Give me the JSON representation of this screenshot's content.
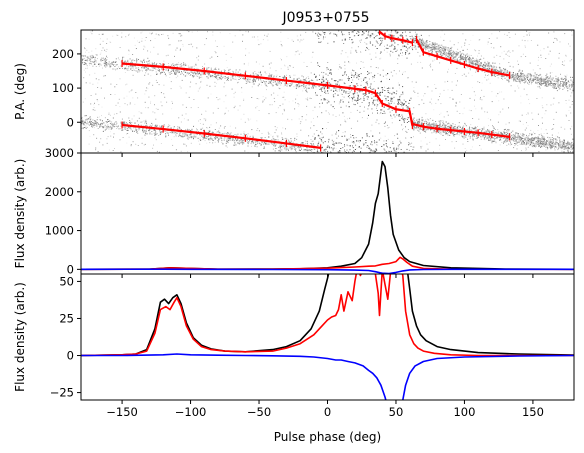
{
  "chart_data": [
    {
      "type": "scatter",
      "title": "J0953+0755",
      "xlabel": "",
      "ylabel": "P.A. (deg)",
      "xlim": [
        -180,
        180
      ],
      "ylim": [
        -90,
        270
      ],
      "yticks": [
        0,
        100,
        200
      ],
      "grid": false,
      "background": "grayscale intensity map of polarization position angle versus pulse phase",
      "series": [
        {
          "color": "#ff0000",
          "marker": "errorbar-points",
          "segments": [
            {
              "x": [
                -150,
                -120,
                -90,
                -60,
                -30,
                0,
                20,
                28,
                35,
                40,
                50,
                60,
                62
              ],
              "y": [
                172,
                162,
                150,
                136,
                122,
                108,
                98,
                94,
                85,
                55,
                38,
                32,
                -10
              ]
            },
            {
              "x": [
                -150,
                -120,
                -90,
                -60,
                -30,
                -5
              ],
              "y": [
                -8,
                -20,
                -33,
                -47,
                -62,
                -75
              ]
            },
            {
              "x": [
                38,
                42,
                47,
                55,
                62
              ],
              "y": [
                265,
                252,
                246,
                240,
                233
              ]
            },
            {
              "x": [
                65,
                70,
                80,
                90,
                100,
                110,
                120,
                133
              ],
              "y": [
                242,
                205,
                193,
                181,
                169,
                157,
                147,
                137
              ]
            },
            {
              "x": [
                62,
                70,
                80,
                90,
                100,
                110,
                120,
                133
              ],
              "y": [
                -5,
                -13,
                -19,
                -23,
                -27,
                -31,
                -36,
                -43
              ]
            }
          ]
        }
      ]
    },
    {
      "type": "line",
      "xlabel": "",
      "ylabel": "Flux density (arb.)",
      "xlim": [
        -180,
        180
      ],
      "ylim": [
        -120,
        3000
      ],
      "yticks": [
        0,
        1000,
        2000,
        3000
      ],
      "grid": false,
      "series": [
        {
          "color": "#000000",
          "x": [
            -180,
            -130,
            -115,
            -100,
            -80,
            -40,
            -20,
            0,
            10,
            20,
            25,
            30,
            33,
            35,
            37,
            39,
            40,
            42,
            44,
            46,
            48,
            52,
            56,
            60,
            70,
            90,
            130,
            180
          ],
          "y": [
            0,
            5,
            40,
            25,
            5,
            8,
            15,
            40,
            80,
            150,
            300,
            650,
            1200,
            1700,
            1950,
            2500,
            2780,
            2650,
            2100,
            1400,
            900,
            500,
            300,
            200,
            100,
            40,
            10,
            0
          ]
        },
        {
          "color": "#ff0000",
          "x": [
            -180,
            -130,
            -115,
            -100,
            -80,
            -40,
            0,
            20,
            30,
            35,
            40,
            45,
            50,
            53,
            55,
            58,
            62,
            70,
            90,
            180
          ],
          "y": [
            0,
            5,
            38,
            25,
            5,
            5,
            30,
            60,
            80,
            90,
            130,
            150,
            200,
            310,
            270,
            180,
            80,
            25,
            5,
            0
          ]
        },
        {
          "color": "#0000ff",
          "x": [
            -180,
            -120,
            -100,
            -40,
            0,
            20,
            30,
            35,
            40,
            45,
            50,
            55,
            60,
            70,
            90,
            180
          ],
          "y": [
            0,
            3,
            2,
            -3,
            -10,
            -20,
            -30,
            -60,
            -100,
            -110,
            -80,
            -40,
            -15,
            -5,
            0,
            0
          ]
        }
      ]
    },
    {
      "type": "line",
      "xlabel": "Pulse phase (deg)",
      "ylabel": "Flux density (arb.)",
      "xlim": [
        -180,
        180
      ],
      "ylim": [
        -30,
        55
      ],
      "yticks": [
        -25,
        0,
        25,
        50
      ],
      "xticks": [
        -150,
        -100,
        -50,
        0,
        50,
        100,
        150
      ],
      "grid": false,
      "series": [
        {
          "color": "#000000",
          "x": [
            -180,
            -150,
            -140,
            -132,
            -126,
            -122,
            -119,
            -116,
            -113,
            -110,
            -107,
            -103,
            -98,
            -92,
            -85,
            -75,
            -60,
            -40,
            -30,
            -20,
            -12,
            -6,
            -2,
            0,
            1,
            2,
            58,
            60,
            62,
            65,
            68,
            72,
            80,
            90,
            110,
            140,
            180
          ],
          "y": [
            0,
            0.5,
            1,
            4,
            18,
            36,
            38,
            35,
            39,
            41,
            35,
            22,
            12,
            7,
            4.5,
            3,
            2.5,
            4,
            6,
            10,
            18,
            30,
            45,
            52,
            56,
            60,
            60,
            45,
            30,
            20,
            14,
            10,
            6,
            4,
            2,
            1,
            0.3
          ]
        },
        {
          "color": "#ff0000",
          "x": [
            -180,
            -150,
            -140,
            -132,
            -126,
            -122,
            -118,
            -115,
            -112,
            -110,
            -107,
            -103,
            -98,
            -92,
            -85,
            -75,
            -60,
            -40,
            -30,
            -20,
            -10,
            -4,
            0,
            3,
            6,
            8,
            10,
            12,
            15,
            18,
            20,
            22,
            24,
            27,
            30,
            33,
            35,
            37,
            38,
            40,
            42,
            44,
            46,
            50,
            53,
            55,
            57,
            60,
            63,
            66,
            70,
            78,
            90,
            110,
            140,
            180
          ],
          "y": [
            0,
            0.5,
            1,
            3,
            15,
            31,
            33,
            31,
            36,
            39,
            33,
            20,
            11,
            6,
            4,
            3,
            2.5,
            3,
            5,
            8,
            14,
            20,
            24,
            26,
            27,
            31,
            41,
            30,
            43,
            37,
            50,
            60,
            54,
            60,
            60,
            60,
            55,
            42,
            27,
            58,
            48,
            38,
            56,
            60,
            60,
            54,
            30,
            14,
            8,
            5,
            3,
            1.5,
            0.5,
            0,
            0,
            0
          ]
        },
        {
          "color": "#0000ff",
          "x": [
            -180,
            -150,
            -120,
            -110,
            -100,
            -80,
            -60,
            -40,
            -20,
            -10,
            0,
            6,
            10,
            15,
            20,
            26,
            30,
            33,
            36,
            39,
            42,
            44,
            45,
            53,
            55,
            57,
            60,
            64,
            70,
            80,
            100,
            140,
            180
          ],
          "y": [
            0,
            0,
            0.5,
            1,
            0.5,
            0.2,
            0,
            -0.2,
            -0.5,
            -1,
            -2,
            -3,
            -3,
            -4,
            -5,
            -7,
            -10,
            -12,
            -15,
            -20,
            -28,
            -35,
            -40,
            -40,
            -30,
            -20,
            -12,
            -7,
            -4,
            -2,
            -1,
            -0.3,
            0
          ]
        }
      ]
    }
  ]
}
